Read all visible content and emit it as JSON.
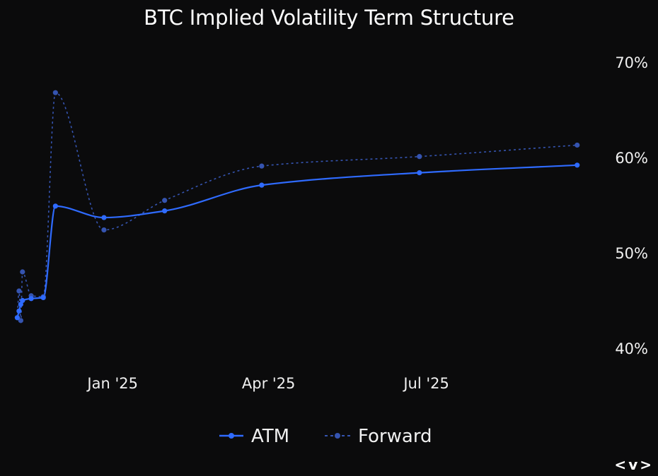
{
  "chart_data": {
    "type": "line",
    "title": "BTC Implied Volatility Term Structure",
    "xlabel": "",
    "ylabel": "",
    "x_ticks": [
      "2025-01-01",
      "2025-04-01",
      "2025-07-01"
    ],
    "x_tick_labels": [
      "Jan '25",
      "Apr '25",
      "Jul '25"
    ],
    "xlim": [
      "2024-11-06",
      "2025-10-01"
    ],
    "y_ticks": [
      40,
      50,
      60,
      70
    ],
    "y_tick_labels": [
      "40%",
      "50%",
      "60%",
      "70%"
    ],
    "ylim": [
      40,
      70
    ],
    "y_axis_position": "right",
    "grid": false,
    "legend_position": "bottom",
    "series": [
      {
        "name": "ATM",
        "color": "#2f6bff",
        "style": "solid",
        "points": [
          {
            "x": "2024-11-07",
            "y": 43.2
          },
          {
            "x": "2024-11-08",
            "y": 43.9
          },
          {
            "x": "2024-11-09",
            "y": 44.6
          },
          {
            "x": "2024-11-10",
            "y": 45.0
          },
          {
            "x": "2024-11-15",
            "y": 45.2
          },
          {
            "x": "2024-11-22",
            "y": 45.3
          },
          {
            "x": "2024-11-29",
            "y": 54.9
          },
          {
            "x": "2024-12-27",
            "y": 53.7
          },
          {
            "x": "2025-01-31",
            "y": 54.4
          },
          {
            "x": "2025-03-28",
            "y": 57.1
          },
          {
            "x": "2025-06-27",
            "y": 58.4
          },
          {
            "x": "2025-09-26",
            "y": 59.2
          }
        ]
      },
      {
        "name": "Forward",
        "color": "#3554b0",
        "style": "dashed",
        "points": [
          {
            "x": "2024-11-07",
            "y": 43.2
          },
          {
            "x": "2024-11-08",
            "y": 46.0
          },
          {
            "x": "2024-11-09",
            "y": 42.9
          },
          {
            "x": "2024-11-10",
            "y": 48.0
          },
          {
            "x": "2024-11-15",
            "y": 45.5
          },
          {
            "x": "2024-11-22",
            "y": 45.4
          },
          {
            "x": "2024-11-29",
            "y": 66.8
          },
          {
            "x": "2024-12-27",
            "y": 52.4
          },
          {
            "x": "2025-01-31",
            "y": 55.5
          },
          {
            "x": "2025-03-28",
            "y": 59.1
          },
          {
            "x": "2025-06-27",
            "y": 60.1
          },
          {
            "x": "2025-09-26",
            "y": 61.3
          }
        ]
      }
    ]
  },
  "nav": {
    "prev": "<",
    "menu": "v",
    "next": ">"
  }
}
